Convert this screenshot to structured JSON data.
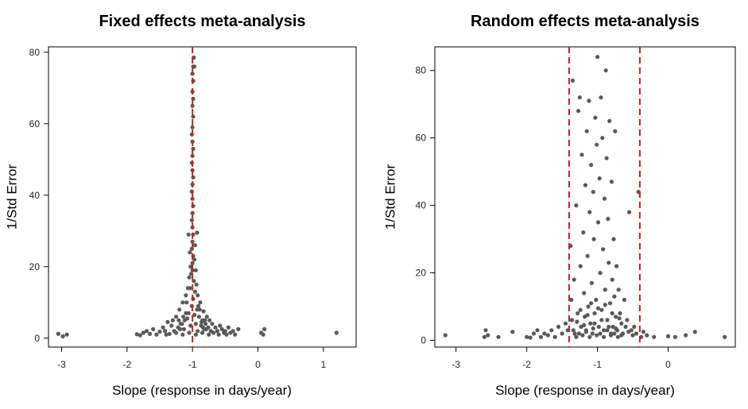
{
  "colors": {
    "points": "#595959",
    "reference_line": "#cc1f1f",
    "axis": "#000000"
  },
  "chart_data": [
    {
      "type": "scatter",
      "title": "Fixed effects meta-analysis",
      "xlabel": "Slope (response in days/year)",
      "ylabel": "1/Std Error",
      "xlim": [
        -3.2,
        1.5
      ],
      "ylim": [
        -2.5,
        81.5
      ],
      "xticks": [
        -3,
        -2,
        -1,
        0,
        1
      ],
      "xtick_labels": [
        "-3",
        "-2",
        "-1",
        "0",
        "1"
      ],
      "yticks": [
        0,
        20,
        40,
        60,
        80
      ],
      "ytick_labels": [
        "0",
        "20",
        "40",
        "60",
        "80"
      ],
      "grid": false,
      "reference_lines": [
        -1.0
      ],
      "points": [
        [
          -3.05,
          1.2
        ],
        [
          -2.98,
          0.5
        ],
        [
          -2.92,
          1.0
        ],
        [
          -1.85,
          1.1
        ],
        [
          -1.8,
          0.8
        ],
        [
          -1.75,
          1.5
        ],
        [
          -1.7,
          2.0
        ],
        [
          -1.65,
          1.2
        ],
        [
          -1.6,
          2.5
        ],
        [
          -1.55,
          1.0
        ],
        [
          -1.5,
          1.8
        ],
        [
          -1.45,
          3.0
        ],
        [
          -1.42,
          2.0
        ],
        [
          -1.38,
          4.5
        ],
        [
          -1.35,
          1.2
        ],
        [
          -1.32,
          3.5
        ],
        [
          -1.3,
          5.0
        ],
        [
          -1.28,
          2.0
        ],
        [
          -1.25,
          6.0
        ],
        [
          -1.22,
          3.0
        ],
        [
          -1.2,
          8.0
        ],
        [
          -1.18,
          4.0
        ],
        [
          -1.15,
          10.0
        ],
        [
          -1.13,
          2.5
        ],
        [
          -1.1,
          12.0
        ],
        [
          -1.08,
          5.5
        ],
        [
          -1.06,
          7.0
        ],
        [
          -1.04,
          14.0
        ],
        [
          -1.03,
          3.5
        ],
        [
          -1.02,
          18.0
        ],
        [
          -1.01,
          9.0
        ],
        [
          -0.99,
          11.0
        ],
        [
          -0.98,
          16.0
        ],
        [
          -0.97,
          6.5
        ],
        [
          -0.96,
          13.0
        ],
        [
          -0.95,
          4.0
        ],
        [
          -0.93,
          8.0
        ],
        [
          -0.92,
          2.0
        ],
        [
          -0.9,
          6.0
        ],
        [
          -0.88,
          10.0
        ],
        [
          -0.87,
          3.5
        ],
        [
          -0.85,
          5.0
        ],
        [
          -0.83,
          7.5
        ],
        [
          -0.82,
          2.5
        ],
        [
          -0.8,
          4.0
        ],
        [
          -0.78,
          6.0
        ],
        [
          -0.76,
          3.0
        ],
        [
          -0.74,
          5.0
        ],
        [
          -0.72,
          2.0
        ],
        [
          -0.7,
          4.0
        ],
        [
          -0.68,
          1.5
        ],
        [
          -0.65,
          3.0
        ],
        [
          -0.62,
          2.0
        ],
        [
          -0.6,
          1.0
        ],
        [
          -0.58,
          3.5
        ],
        [
          -0.55,
          2.5
        ],
        [
          -0.52,
          1.5
        ],
        [
          -0.5,
          2.0
        ],
        [
          -0.48,
          1.0
        ],
        [
          -0.45,
          3.0
        ],
        [
          -0.42,
          1.5
        ],
        [
          -0.38,
          2.0
        ],
        [
          -0.35,
          1.0
        ],
        [
          -0.3,
          2.5
        ],
        [
          -1.4,
          1.0
        ],
        [
          -1.25,
          1.5
        ],
        [
          -1.15,
          1.0
        ],
        [
          -1.05,
          1.5
        ],
        [
          -0.95,
          1.0
        ],
        [
          -0.85,
          1.5
        ],
        [
          -0.75,
          1.0
        ],
        [
          0.05,
          1.5
        ],
        [
          0.08,
          1.0
        ],
        [
          0.1,
          2.5
        ],
        [
          1.2,
          1.5
        ],
        [
          -1.0,
          19.0
        ],
        [
          -1.0,
          21.0
        ],
        [
          -0.99,
          23.0
        ],
        [
          -1.01,
          25.0
        ],
        [
          -1.0,
          27.0
        ],
        [
          -0.99,
          29.0
        ],
        [
          -1.0,
          31.0
        ],
        [
          -1.01,
          33.0
        ],
        [
          -1.0,
          35.0
        ],
        [
          -0.99,
          37.0
        ],
        [
          -1.0,
          39.0
        ],
        [
          -1.01,
          41.0
        ],
        [
          -1.0,
          43.0
        ],
        [
          -0.99,
          45.0
        ],
        [
          -1.0,
          47.0
        ],
        [
          -1.01,
          49.0
        ],
        [
          -1.0,
          51.0
        ],
        [
          -0.99,
          53.0
        ],
        [
          -1.0,
          55.0
        ],
        [
          -1.01,
          57.0
        ],
        [
          -1.0,
          59.0
        ],
        [
          -0.99,
          62.0
        ],
        [
          -1.0,
          65.0
        ],
        [
          -0.99,
          67.0
        ],
        [
          -1.0,
          69.0
        ],
        [
          -0.99,
          72.0
        ],
        [
          -1.0,
          74.0
        ],
        [
          -0.99,
          76.0
        ],
        [
          -0.98,
          78.5
        ],
        [
          -0.97,
          76.0
        ],
        [
          -1.06,
          29.0
        ],
        [
          -0.93,
          29.5
        ],
        [
          -1.04,
          24.0
        ],
        [
          -0.96,
          26.0
        ],
        [
          -1.03,
          20.0
        ],
        [
          -0.97,
          22.0
        ],
        [
          -1.05,
          17.0
        ],
        [
          -0.95,
          19.0
        ],
        [
          -1.07,
          14.0
        ],
        [
          -0.94,
          15.0
        ],
        [
          -0.92,
          12.0
        ],
        [
          -1.09,
          10.0
        ],
        [
          -0.91,
          9.0
        ],
        [
          -1.1,
          7.0
        ],
        [
          -0.89,
          8.0
        ],
        [
          -1.12,
          5.0
        ],
        [
          -0.86,
          4.5
        ],
        [
          -1.14,
          6.0
        ],
        [
          -0.84,
          3.0
        ],
        [
          -1.16,
          4.0
        ],
        [
          -0.81,
          5.0
        ],
        [
          -1.19,
          2.5
        ],
        [
          -0.79,
          2.5
        ],
        [
          -1.21,
          5.0
        ]
      ]
    },
    {
      "type": "scatter",
      "title": "Random effects meta-analysis",
      "xlabel": "Slope (response in days/year)",
      "ylabel": "1/Std Error",
      "xlim": [
        -3.3,
        0.95
      ],
      "ylim": [
        -2.0,
        87.0
      ],
      "xticks": [
        -3,
        -2,
        -1,
        0
      ],
      "xtick_labels": [
        "-3",
        "-2",
        "-1",
        "0"
      ],
      "yticks": [
        0,
        20,
        40,
        60,
        80
      ],
      "ytick_labels": [
        "0",
        "20",
        "40",
        "60",
        "80"
      ],
      "grid": false,
      "reference_lines": [
        -1.4,
        -0.4
      ],
      "points": [
        [
          -3.15,
          1.5
        ],
        [
          -2.6,
          1.0
        ],
        [
          -2.58,
          3.0
        ],
        [
          -2.55,
          1.5
        ],
        [
          -2.4,
          1.0
        ],
        [
          -2.2,
          2.5
        ],
        [
          -2.0,
          1.0
        ],
        [
          -1.95,
          0.8
        ],
        [
          -1.9,
          2.0
        ],
        [
          -1.85,
          3.0
        ],
        [
          -1.8,
          1.0
        ],
        [
          -1.75,
          2.0
        ],
        [
          -1.7,
          1.5
        ],
        [
          -1.65,
          3.0
        ],
        [
          -1.6,
          1.0
        ],
        [
          -1.55,
          4.0
        ],
        [
          -1.5,
          2.0
        ],
        [
          -1.45,
          5.0
        ],
        [
          -1.42,
          3.0
        ],
        [
          -1.38,
          28.0
        ],
        [
          -1.37,
          12.0
        ],
        [
          -1.36,
          6.0
        ],
        [
          -1.35,
          77.0
        ],
        [
          -1.33,
          18.0
        ],
        [
          -1.32,
          2.0
        ],
        [
          -1.3,
          40.0
        ],
        [
          -1.28,
          8.0
        ],
        [
          -1.27,
          68.0
        ],
        [
          -1.25,
          72.0
        ],
        [
          -1.24,
          22.0
        ],
        [
          -1.23,
          4.0
        ],
        [
          -1.22,
          55.0
        ],
        [
          -1.2,
          32.0
        ],
        [
          -1.19,
          14.0
        ],
        [
          -1.18,
          7.0
        ],
        [
          -1.17,
          46.0
        ],
        [
          -1.16,
          3.0
        ],
        [
          -1.15,
          62.0
        ],
        [
          -1.14,
          25.0
        ],
        [
          -1.13,
          10.0
        ],
        [
          -1.12,
          71.0
        ],
        [
          -1.11,
          38.0
        ],
        [
          -1.1,
          5.0
        ],
        [
          -1.09,
          52.0
        ],
        [
          -1.08,
          17.0
        ],
        [
          -1.07,
          2.0
        ],
        [
          -1.06,
          44.0
        ],
        [
          -1.05,
          30.0
        ],
        [
          -1.04,
          8.0
        ],
        [
          -1.03,
          66.0
        ],
        [
          -1.02,
          12.0
        ],
        [
          -1.01,
          58.0
        ],
        [
          -1.0,
          84.0
        ],
        [
          -0.99,
          35.0
        ],
        [
          -0.98,
          4.0
        ],
        [
          -0.97,
          48.0
        ],
        [
          -0.96,
          20.0
        ],
        [
          -0.95,
          72.0
        ],
        [
          -0.94,
          9.0
        ],
        [
          -0.93,
          60.0
        ],
        [
          -0.92,
          27.0
        ],
        [
          -0.91,
          3.0
        ],
        [
          -0.9,
          42.0
        ],
        [
          -0.89,
          15.0
        ],
        [
          -0.88,
          80.0
        ],
        [
          -0.87,
          54.0
        ],
        [
          -0.86,
          6.0
        ],
        [
          -0.85,
          36.0
        ],
        [
          -0.84,
          23.0
        ],
        [
          -0.83,
          65.0
        ],
        [
          -0.82,
          11.0
        ],
        [
          -0.81,
          2.0
        ],
        [
          -0.8,
          47.0
        ],
        [
          -0.79,
          18.0
        ],
        [
          -0.78,
          4.0
        ],
        [
          -0.77,
          30.0
        ],
        [
          -0.76,
          13.0
        ],
        [
          -0.75,
          62.0
        ],
        [
          -0.74,
          7.0
        ],
        [
          -0.73,
          22.0
        ],
        [
          -0.72,
          3.0
        ],
        [
          -0.7,
          15.0
        ],
        [
          -0.68,
          8.0
        ],
        [
          -0.66,
          5.0
        ],
        [
          -0.64,
          2.0
        ],
        [
          -0.62,
          12.0
        ],
        [
          -0.6,
          4.0
        ],
        [
          -0.58,
          6.0
        ],
        [
          -0.56,
          2.5
        ],
        [
          -0.55,
          38.0
        ],
        [
          -0.52,
          3.0
        ],
        [
          -0.5,
          1.5
        ],
        [
          -0.48,
          4.0
        ],
        [
          -0.45,
          2.0
        ],
        [
          -0.42,
          44.0
        ],
        [
          -0.38,
          1.0
        ],
        [
          -0.35,
          2.5
        ],
        [
          -0.3,
          1.5
        ],
        [
          -0.2,
          1.0
        ],
        [
          0.0,
          1.2
        ],
        [
          0.1,
          1.0
        ],
        [
          0.25,
          1.5
        ],
        [
          0.38,
          2.5
        ],
        [
          0.8,
          1.0
        ],
        [
          -1.3,
          1.0
        ],
        [
          -1.26,
          2.0
        ],
        [
          -1.21,
          1.5
        ],
        [
          -1.16,
          2.5
        ],
        [
          -1.11,
          1.0
        ],
        [
          -1.06,
          3.5
        ],
        [
          -1.01,
          1.5
        ],
        [
          -0.96,
          2.0
        ],
        [
          -0.91,
          1.0
        ],
        [
          -0.86,
          3.0
        ],
        [
          -0.81,
          1.5
        ],
        [
          -0.76,
          2.0
        ],
        [
          -0.71,
          1.0
        ],
        [
          -0.66,
          1.5
        ],
        [
          -1.34,
          3.0
        ],
        [
          -1.29,
          5.5
        ],
        [
          -1.24,
          9.0
        ],
        [
          -1.19,
          4.5
        ],
        [
          -1.14,
          7.5
        ],
        [
          -1.09,
          11.0
        ],
        [
          -1.04,
          5.0
        ],
        [
          -0.99,
          9.5
        ],
        [
          -0.94,
          6.0
        ],
        [
          -0.89,
          10.5
        ],
        [
          -0.84,
          4.0
        ],
        [
          -0.79,
          8.0
        ],
        [
          -0.74,
          3.5
        ],
        [
          -0.69,
          6.5
        ]
      ]
    }
  ]
}
